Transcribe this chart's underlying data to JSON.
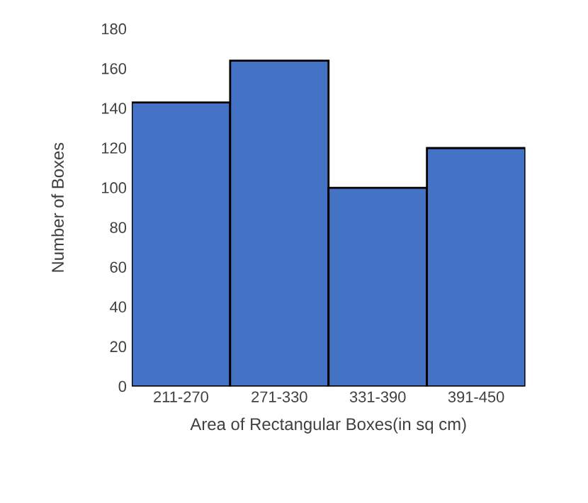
{
  "chart_data": {
    "type": "bar",
    "xlabel": "Area of Rectangular Boxes(in sq cm)",
    "ylabel": "Number of Boxes",
    "categories": [
      "211-270",
      "271-330",
      "331-390",
      "391-450"
    ],
    "values": [
      143,
      164,
      100,
      120
    ],
    "color": "#4472c4",
    "ylim": [
      0,
      180
    ],
    "yticks": [
      0,
      20,
      40,
      60,
      80,
      100,
      120,
      140,
      160,
      180
    ]
  }
}
